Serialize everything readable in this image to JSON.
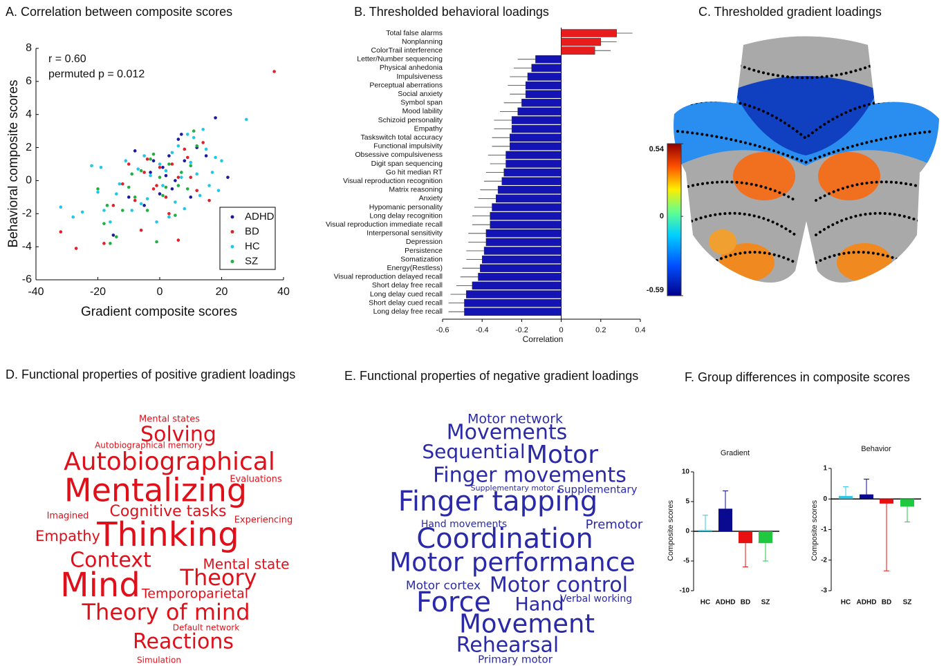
{
  "chart_data": [
    {
      "type": "scatter",
      "title": "A. Correlation between composite scores",
      "xlabel": "Gradient composite scores",
      "ylabel": "Behavioral composite scores",
      "annotations": [
        "r = 0.60",
        "permuted p = 0.012"
      ],
      "xlim": [
        -40,
        40
      ],
      "xticks": [
        -40,
        -20,
        0,
        20,
        40
      ],
      "ylim": [
        -6,
        8
      ],
      "yticks": [
        -6,
        -4,
        -2,
        0,
        2,
        4,
        6,
        8
      ],
      "legend": "lower right",
      "series": [
        {
          "name": "ADHD",
          "color": "#1a1aa0",
          "x": [
            -15,
            -8,
            -5,
            -3,
            0,
            2,
            3,
            5,
            7,
            8,
            10,
            12,
            15,
            18,
            22,
            -2,
            4,
            6,
            -10,
            1
          ],
          "values": [
            -3.3,
            1.8,
            -1.5,
            0.5,
            -0.8,
            0.3,
            1.5,
            0,
            2.8,
            1.2,
            -1,
            2,
            1.5,
            3.8,
            0.2,
            1.2,
            -0.5,
            2.5,
            -1,
            0.8
          ]
        },
        {
          "name": "BD",
          "color": "#e0202a",
          "x": [
            -32,
            -27,
            -18,
            -15,
            -12,
            -8,
            -6,
            -4,
            -2,
            0,
            2,
            4,
            6,
            8,
            10,
            12,
            14,
            37,
            -10,
            -5,
            3,
            6,
            -1,
            9,
            16
          ],
          "values": [
            -3.1,
            -4.1,
            -3.8,
            -1.5,
            -0.2,
            -1.2,
            -3,
            1.3,
            -0.5,
            0.8,
            -1,
            1,
            -3.6,
            1.9,
            0.2,
            -0.6,
            2.3,
            6.6,
            1,
            0.5,
            -2,
            0.2,
            -0.3,
            1.4,
            -1.2
          ]
        },
        {
          "name": "HC",
          "color": "#20c8e8",
          "x": [
            -32,
            -28,
            -25,
            -22,
            -20,
            -18,
            -16,
            -14,
            -13,
            -11,
            -9,
            -7,
            -5,
            -4,
            -3,
            -1,
            0,
            1,
            2,
            3,
            4,
            5,
            6,
            7,
            8,
            9,
            10,
            11,
            12,
            13,
            14,
            15,
            16,
            17,
            18,
            19,
            20,
            28,
            -19,
            -6
          ],
          "values": [
            -1.6,
            -2.2,
            -1.9,
            0.9,
            -0.7,
            -1.8,
            -2.5,
            -0.8,
            -0.2,
            1.2,
            -1.8,
            0.7,
            1.5,
            -1.1,
            0.3,
            -2.5,
            1,
            -0.3,
            0.6,
            -2.2,
            1.7,
            -1.3,
            2.1,
            0.2,
            -1.7,
            2.8,
            1.1,
            2.6,
            0.4,
            -0.9,
            3.1,
            1.9,
            -0.3,
            0.5,
            1.4,
            -0.6,
            1.2,
            3.7,
            0.8,
            -1.4
          ]
        },
        {
          "name": "SZ",
          "color": "#20b040",
          "x": [
            -20,
            -18,
            -16,
            -14,
            -12,
            -10,
            -8,
            -6,
            -4,
            -2,
            -1,
            0,
            1,
            3,
            5,
            7,
            9,
            11,
            12,
            -17,
            -3,
            2,
            6,
            -9,
            10
          ],
          "values": [
            -0.5,
            -2.6,
            -3.8,
            -3.4,
            -1.8,
            -0.4,
            -1,
            0.6,
            -1.8,
            1.6,
            -3.7,
            0.2,
            -0.9,
            1,
            -2.1,
            0.5,
            -0.5,
            3,
            2.1,
            -1.5,
            1.3,
            -0.4,
            -0.3,
            0.4,
            0.9
          ]
        }
      ]
    },
    {
      "type": "bar",
      "orientation": "horizontal",
      "title": "B. Thresholded behavioral loadings",
      "xlabel": "Correlation",
      "xlim": [
        -0.6,
        0.4
      ],
      "xticks": [
        -0.6,
        -0.4,
        -0.2,
        0,
        0.2,
        0.4
      ],
      "positive_color": "#e81c1c",
      "negative_color": "#1414b4",
      "categories": [
        "Total false alarms",
        "Nonplanning",
        "ColorTrail interference",
        "Letter/Number sequencing",
        "Physical anhedonia",
        "Impulsiveness",
        "Perceptual aberrations",
        "Social anxiety",
        "Symbol span",
        "Mood lability",
        "Schizoid personality",
        "Empathy",
        "Taskswitch total accuracy",
        "Functional impulsivity",
        "Obsessive compulsiveness",
        "Digit span sequencing",
        "Go hit median RT",
        "Visual reproduction recognition",
        "Matrix reasoning",
        "Anxiety",
        "Hypomanic personality",
        "Long delay recognition",
        "Visual reproduction immediate recall",
        "Interpersonal sensitivity",
        "Depression",
        "Persistence",
        "Somatization",
        "Energy(Restless)",
        "Visual reproduction delayed recall",
        "Short delay free recall",
        "Long delay cued recall",
        "Short delay cued recall",
        "Long delay free recall"
      ],
      "values": [
        0.28,
        0.2,
        0.17,
        -0.13,
        -0.15,
        -0.17,
        -0.18,
        -0.18,
        -0.2,
        -0.22,
        -0.25,
        -0.25,
        -0.26,
        -0.26,
        -0.28,
        -0.28,
        -0.29,
        -0.3,
        -0.32,
        -0.33,
        -0.35,
        -0.36,
        -0.36,
        -0.38,
        -0.38,
        -0.39,
        -0.4,
        -0.41,
        -0.42,
        -0.45,
        -0.48,
        -0.49,
        -0.49
      ],
      "errors": [
        0.08,
        0.08,
        0.08,
        0.09,
        0.09,
        0.09,
        0.09,
        0.08,
        0.09,
        0.09,
        0.09,
        0.09,
        0.09,
        0.09,
        0.09,
        0.08,
        0.09,
        0.09,
        0.09,
        0.09,
        0.09,
        0.09,
        0.09,
        0.09,
        0.09,
        0.09,
        0.08,
        0.09,
        0.09,
        0.08,
        0.08,
        0.08,
        0.08
      ]
    },
    {
      "type": "bar",
      "title": "Gradient",
      "ylabel": "Composite scores",
      "categories": [
        "HC",
        "ADHD",
        "BD",
        "SZ"
      ],
      "values": [
        0.2,
        3.8,
        -2,
        -2
      ],
      "errors": [
        2.5,
        3,
        4,
        3
      ],
      "colors": [
        "#30c8e0",
        "#0a0a90",
        "#e81010",
        "#20c840"
      ],
      "ylim": [
        -10,
        10
      ],
      "yticks": [
        -10,
        -5,
        0,
        5,
        10
      ]
    },
    {
      "type": "bar",
      "title": "Behavior",
      "ylabel": "Composite scores",
      "categories": [
        "HC",
        "ADHD",
        "BD",
        "SZ"
      ],
      "values": [
        0.1,
        0.15,
        -0.15,
        -0.25
      ],
      "errors": [
        0.3,
        0.5,
        2.2,
        0.5
      ],
      "colors": [
        "#30c8e0",
        "#0a0a90",
        "#e81010",
        "#20c840"
      ],
      "ylim": [
        -3,
        1
      ],
      "yticks": [
        -3,
        -2,
        -1,
        0,
        1
      ]
    }
  ],
  "brain_map": {
    "title": "C. Thresholded gradient loadings",
    "colorbar_lim": [
      -0.59,
      0.54
    ],
    "colorbar_ticks": [
      0.54,
      0,
      -0.59
    ]
  },
  "panel_f_title": "F. Group differences in composite scores",
  "word_clouds": [
    {
      "title": "D.  Functional properties of positive gradient loadings",
      "color": "#e0101a",
      "words": [
        "Mental states",
        "Solving",
        "Autobiographical memory",
        "Autobiographical",
        "Evaluations",
        "Mentalizing",
        "Imagined",
        "Cognitive tasks",
        "Experiencing",
        "Empathy",
        "Thinking",
        "Context",
        "Mental state",
        "Theory",
        "Mind",
        "Temporoparietal",
        "Theory of mind",
        "Default network",
        "Reactions",
        "Simulation"
      ]
    },
    {
      "title": "E.  Functional properties of negative gradient loadings",
      "color": "#2a2aa8",
      "words": [
        "Motor network",
        "Movements",
        "Sequential",
        "Motor",
        "Finger movements",
        "Supplementary motor",
        "Supplementary",
        "Finger tapping",
        "Hand movements",
        "Premotor",
        "Coordination",
        "Motor performance",
        "Motor cortex",
        "Motor control",
        "Verbal working",
        "Hand",
        "Force",
        "Movement",
        "Rehearsal",
        "Primary motor"
      ]
    }
  ]
}
